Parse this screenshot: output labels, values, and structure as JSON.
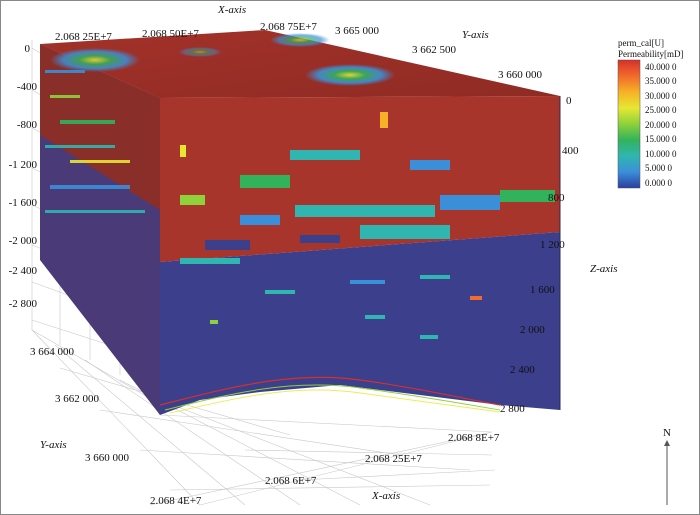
{
  "axes": {
    "x_title": "X-axis",
    "y_title": "Y-axis",
    "z_title": "Z-axis",
    "top_x_ticks": [
      "2.068 25E+7",
      "2.068 50E+7",
      "2.068 75E+7"
    ],
    "top_y_ticks": [
      "3 665 000",
      "3 662 500",
      "3 660 000"
    ],
    "left_z_ticks": [
      "0",
      "-400",
      "-800",
      "-1 200",
      "-1 600",
      "-2 000",
      "-2 400",
      "-2 800"
    ],
    "right_z_ticks": [
      "0",
      "400",
      "800",
      "1 200",
      "1 600",
      "2 000",
      "2 400",
      "2 800"
    ],
    "bottom_y_ticks": [
      "3 664 000",
      "3 662 000",
      "3 660 000"
    ],
    "bottom_x_ticks": [
      "2.068 4E+7",
      "2.068 6E+7",
      "2.068 25E+7",
      "2.068 8E+7"
    ]
  },
  "legend": {
    "title_line1": "perm_cal[U]",
    "title_line2": "Permeability[mD]",
    "ticks": [
      "40.000 0",
      "35.000 0",
      "30.000 0",
      "25.000 0",
      "20.000 0",
      "15.000 0",
      "10.000 0",
      "5.000 0",
      "0.000 0"
    ],
    "colors": [
      "#d6302a",
      "#f26a2c",
      "#f6b126",
      "#e7e733",
      "#8ed13b",
      "#33b25c",
      "#2fb6b0",
      "#3b8fd9",
      "#2b3f9e"
    ]
  },
  "north_label": "N",
  "colors": {
    "red_zone": "#a8352c",
    "blue_zone": "#3b3f8c",
    "top_face": "#9c2f27"
  }
}
